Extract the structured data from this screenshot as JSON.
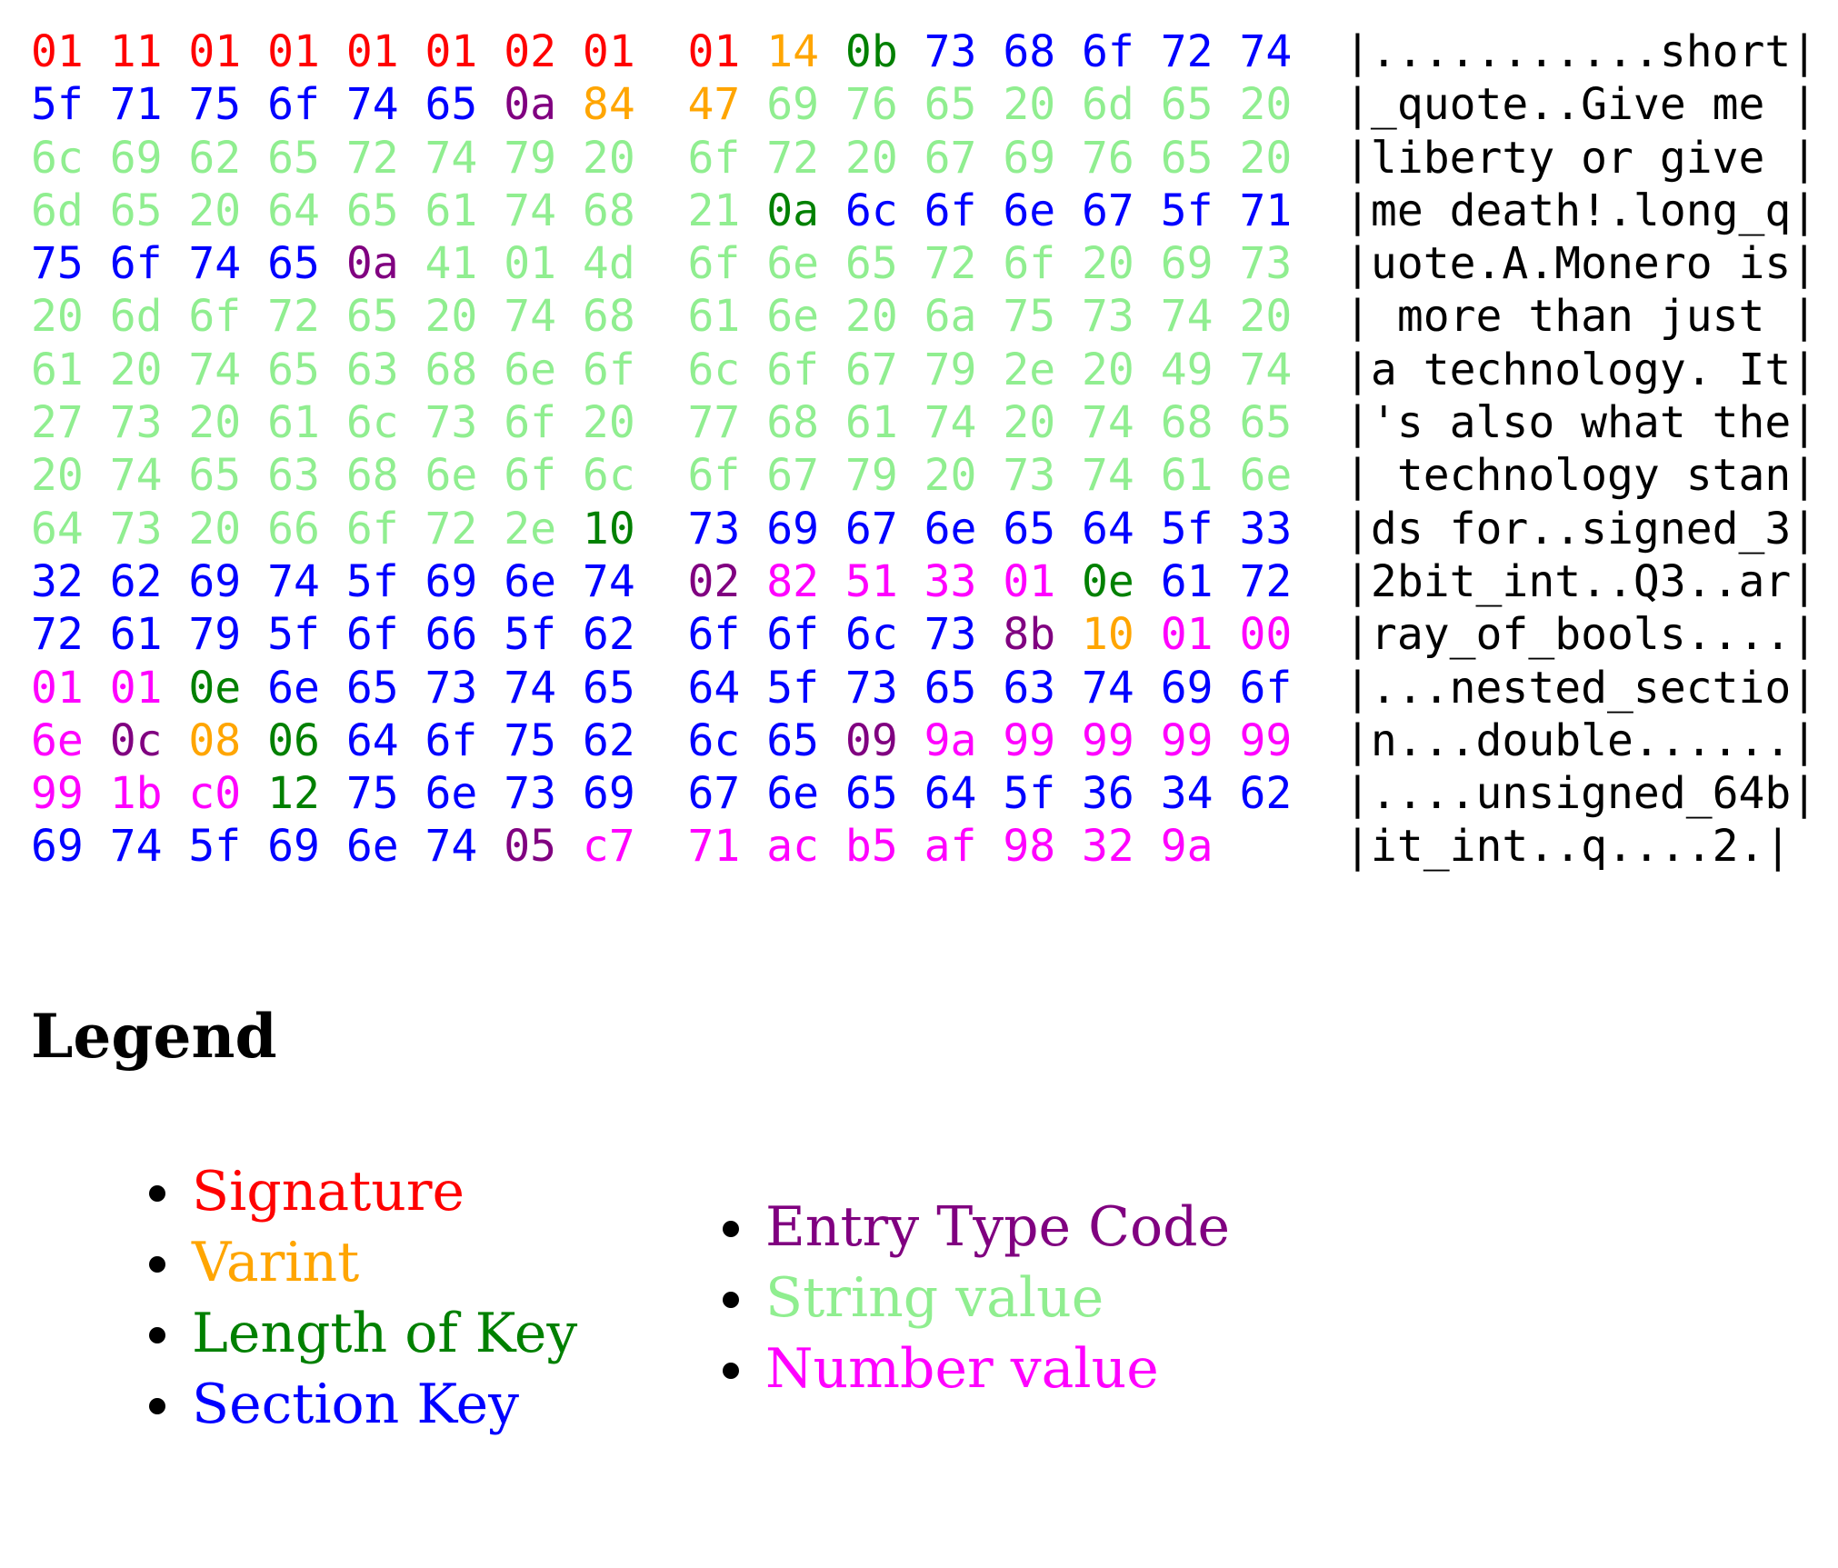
{
  "colors": {
    "S": "#ff0000",
    "V": "#ffa500",
    "L": "#008000",
    "K": "#0000ff",
    "T": "#800080",
    "G": "#90ee90",
    "N": "#ff00ff"
  },
  "hexdump": [
    {
      "bytes": "01:S 11:S 01:S 01:S 01:S 01:S 02:S 01:S 01:S 14:V 0b:L 73:K 68:K 6f:K 72:K 74:K",
      "ascii": "|...........short|"
    },
    {
      "bytes": "5f:K 71:K 75:K 6f:K 74:K 65:K 0a:T 84:V 47:V 69:G 76:G 65:G 20:G 6d:G 65:G 20:G",
      "ascii": "|_quote..Give me |"
    },
    {
      "bytes": "6c:G 69:G 62:G 65:G 72:G 74:G 79:G 20:G 6f:G 72:G 20:G 67:G 69:G 76:G 65:G 20:G",
      "ascii": "|liberty or give |"
    },
    {
      "bytes": "6d:G 65:G 20:G 64:G 65:G 61:G 74:G 68:G 21:G 0a:L 6c:K 6f:K 6e:K 67:K 5f:K 71:K",
      "ascii": "|me death!.long_q|"
    },
    {
      "bytes": "75:K 6f:K 74:K 65:K 0a:T 41:G 01:G 4d:G 6f:G 6e:G 65:G 72:G 6f:G 20:G 69:G 73:G",
      "ascii": "|uote.A.Monero is|"
    },
    {
      "bytes": "20:G 6d:G 6f:G 72:G 65:G 20:G 74:G 68:G 61:G 6e:G 20:G 6a:G 75:G 73:G 74:G 20:G",
      "ascii": "| more than just |"
    },
    {
      "bytes": "61:G 20:G 74:G 65:G 63:G 68:G 6e:G 6f:G 6c:G 6f:G 67:G 79:G 2e:G 20:G 49:G 74:G",
      "ascii": "|a technology. It|"
    },
    {
      "bytes": "27:G 73:G 20:G 61:G 6c:G 73:G 6f:G 20:G 77:G 68:G 61:G 74:G 20:G 74:G 68:G 65:G",
      "ascii": "|'s also what the|"
    },
    {
      "bytes": "20:G 74:G 65:G 63:G 68:G 6e:G 6f:G 6c:G 6f:G 67:G 79:G 20:G 73:G 74:G 61:G 6e:G",
      "ascii": "| technology stan|"
    },
    {
      "bytes": "64:G 73:G 20:G 66:G 6f:G 72:G 2e:G 10:L 73:K 69:K 67:K 6e:K 65:K 64:K 5f:K 33:K",
      "ascii": "|ds for..signed_3|"
    },
    {
      "bytes": "32:K 62:K 69:K 74:K 5f:K 69:K 6e:K 74:K 02:T 82:N 51:N 33:N 01:N 0e:L 61:K 72:K",
      "ascii": "|2bit_int..Q3..ar|"
    },
    {
      "bytes": "72:K 61:K 79:K 5f:K 6f:K 66:K 5f:K 62:K 6f:K 6f:K 6c:K 73:K 8b:T 10:V 01:N 00:N",
      "ascii": "|ray_of_bools....|"
    },
    {
      "bytes": "01:N 01:N 0e:L 6e:K 65:K 73:K 74:K 65:K 64:K 5f:K 73:K 65:K 63:K 74:K 69:K 6f:K",
      "ascii": "|...nested_sectio|"
    },
    {
      "bytes": "6e:N 0c:T 08:V 06:L 64:K 6f:K 75:K 62:K 6c:K 65:K 09:T 9a:N 99:N 99:N 99:N 99:N",
      "ascii": "|n...double......|"
    },
    {
      "bytes": "99:N 1b:N c0:N 12:L 75:K 6e:K 73:K 69:K 67:K 6e:K 65:K 64:K 5f:K 36:K 34:K 62:K",
      "ascii": "|....unsigned_64b|"
    },
    {
      "bytes": "69:K 74:K 5f:K 69:K 6e:K 74:K 05:T c7:N 71:N ac:N b5:N af:N 98:N 32:N 9a:N",
      "ascii": "|it_int..q....2.|"
    }
  ],
  "legend": {
    "title": "Legend",
    "column1": [
      {
        "label": "Signature",
        "cat": "S"
      },
      {
        "label": "Varint",
        "cat": "V"
      },
      {
        "label": "Length of Key",
        "cat": "L"
      },
      {
        "label": "Section Key",
        "cat": "K"
      }
    ],
    "column2": [
      {
        "label": "Entry Type Code",
        "cat": "T"
      },
      {
        "label": "String value",
        "cat": "G"
      },
      {
        "label": "Number value",
        "cat": "N"
      }
    ]
  }
}
